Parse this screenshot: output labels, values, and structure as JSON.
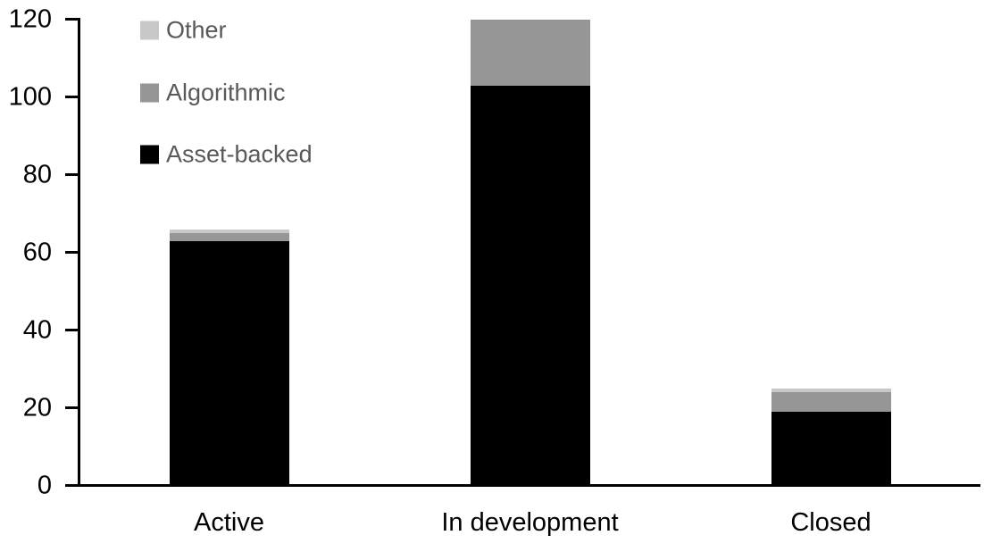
{
  "chart_data": {
    "type": "bar",
    "stacked": true,
    "title": "",
    "xlabel": "",
    "ylabel": "",
    "categories": [
      "Active",
      "In development",
      "Closed"
    ],
    "series": [
      {
        "name": "Asset-backed",
        "color": "#000000",
        "values": [
          63,
          103,
          19
        ]
      },
      {
        "name": "Algorithmic",
        "color": "#969696",
        "values": [
          2,
          17,
          5
        ]
      },
      {
        "name": "Other",
        "color": "#C8C8C8",
        "values": [
          1,
          0,
          1
        ]
      }
    ],
    "ylim": [
      0,
      120
    ],
    "ytick_step": 20,
    "ytick_labels": [
      "0",
      "20",
      "40",
      "60",
      "80",
      "100",
      "120"
    ],
    "grid": false,
    "legend_position": "top-left-inside",
    "legend_order": [
      "Other",
      "Algorithmic",
      "Asset-backed"
    ]
  },
  "colors": {
    "background": "#ffffff",
    "axis": "#000000",
    "tick_label_text": "#000000",
    "category_label_text": "#000000",
    "legend_text": "#595959"
  }
}
